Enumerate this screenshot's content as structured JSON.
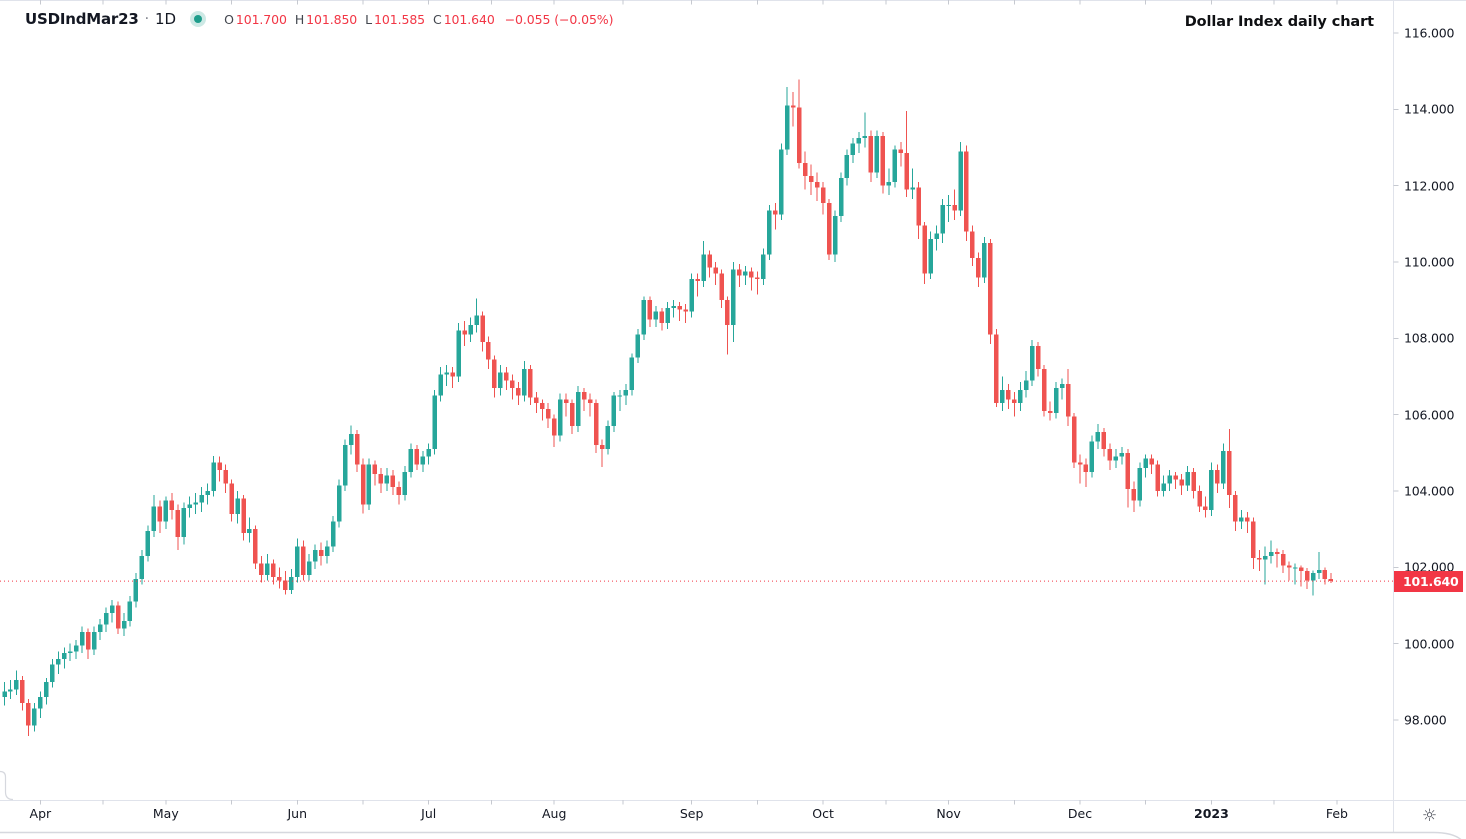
{
  "header": {
    "symbol": "USDIndMar23",
    "separator": "·",
    "interval": "1D",
    "ohlc": {
      "o_label": "O",
      "o": "101.700",
      "h_label": "H",
      "h": "101.850",
      "l_label": "L",
      "l": "101.585",
      "c_label": "C",
      "c": "101.640",
      "change": "−0.055 (−0.05%)"
    },
    "note": "Dollar Index daily chart"
  },
  "icons": {
    "marker": "data-status-dot",
    "settings_glyph": "☼"
  },
  "colors": {
    "up": "#26a69a",
    "down": "#ef5350",
    "accent_red": "#f23645",
    "axis_text": "#131722",
    "border": "#e0e3eb",
    "tick": "#c6c9d0",
    "frame": "#d6d8de"
  },
  "price_axis": {
    "labels": [
      "116.000",
      "114.000",
      "112.000",
      "110.000",
      "108.000",
      "106.000",
      "104.000",
      "102.000",
      "100.000",
      "98.000"
    ],
    "values": [
      116,
      114,
      112,
      110,
      108,
      106,
      104,
      102,
      100,
      98
    ],
    "last_price_label": "101.640",
    "last_price_value": 101.64
  },
  "time_axis": {
    "labels": [
      {
        "text": "Apr",
        "index": 6
      },
      {
        "text": "May",
        "index": 27
      },
      {
        "text": "Jun",
        "index": 49
      },
      {
        "text": "Jul",
        "index": 71
      },
      {
        "text": "Aug",
        "index": 92
      },
      {
        "text": "Sep",
        "index": 115
      },
      {
        "text": "Oct",
        "index": 137
      },
      {
        "text": "Nov",
        "index": 158
      },
      {
        "text": "Dec",
        "index": 180
      },
      {
        "text": "2023",
        "index": 202,
        "bold": true
      },
      {
        "text": "Feb",
        "index": 223
      }
    ]
  },
  "chart_data": {
    "type": "candlestick",
    "title": "Dollar Index daily chart",
    "symbol": "USDIndMar23",
    "interval": "1D",
    "axis_min": 98,
    "axis_max": 116,
    "axis_step": 2,
    "last_close": 101.64,
    "candles": [
      [
        98.6,
        99.0,
        98.38,
        98.75
      ],
      [
        98.75,
        99.05,
        98.55,
        98.8
      ],
      [
        98.8,
        99.3,
        98.65,
        99.05
      ],
      [
        99.05,
        99.15,
        98.25,
        98.45
      ],
      [
        98.45,
        98.55,
        97.58,
        97.85
      ],
      [
        97.85,
        98.45,
        97.7,
        98.3
      ],
      [
        98.3,
        98.75,
        98.05,
        98.6
      ],
      [
        98.6,
        99.1,
        98.4,
        99.0
      ],
      [
        99.0,
        99.6,
        98.85,
        99.45
      ],
      [
        99.45,
        99.8,
        99.2,
        99.6
      ],
      [
        99.6,
        99.9,
        99.35,
        99.75
      ],
      [
        99.75,
        100.0,
        99.55,
        99.8
      ],
      [
        99.8,
        100.1,
        99.6,
        99.95
      ],
      [
        99.95,
        100.45,
        99.75,
        100.3
      ],
      [
        100.3,
        100.4,
        99.6,
        99.85
      ],
      [
        99.85,
        100.45,
        99.7,
        100.3
      ],
      [
        100.3,
        100.65,
        100.1,
        100.5
      ],
      [
        100.5,
        100.95,
        100.3,
        100.8
      ],
      [
        100.8,
        101.15,
        100.55,
        101.0
      ],
      [
        101.0,
        101.1,
        100.25,
        100.4
      ],
      [
        100.4,
        100.8,
        100.2,
        100.6
      ],
      [
        100.6,
        101.25,
        100.45,
        101.1
      ],
      [
        101.1,
        101.85,
        100.95,
        101.7
      ],
      [
        101.7,
        102.45,
        101.55,
        102.3
      ],
      [
        102.3,
        103.1,
        102.15,
        102.95
      ],
      [
        102.95,
        103.9,
        102.8,
        103.6
      ],
      [
        103.6,
        103.75,
        102.9,
        103.2
      ],
      [
        103.2,
        103.85,
        103.0,
        103.75
      ],
      [
        103.75,
        103.95,
        103.25,
        103.5
      ],
      [
        103.5,
        103.65,
        102.45,
        102.8
      ],
      [
        102.8,
        103.7,
        102.6,
        103.55
      ],
      [
        103.55,
        103.85,
        103.3,
        103.65
      ],
      [
        103.65,
        103.95,
        103.4,
        103.7
      ],
      [
        103.7,
        104.1,
        103.45,
        103.9
      ],
      [
        103.9,
        104.2,
        103.65,
        104.0
      ],
      [
        104.0,
        104.92,
        103.85,
        104.75
      ],
      [
        104.75,
        104.9,
        104.25,
        104.55
      ],
      [
        104.55,
        104.7,
        103.95,
        104.2
      ],
      [
        104.2,
        104.3,
        103.2,
        103.4
      ],
      [
        103.4,
        104.0,
        103.15,
        103.8
      ],
      [
        103.8,
        103.9,
        102.7,
        102.9
      ],
      [
        102.9,
        103.3,
        102.65,
        103.0
      ],
      [
        103.0,
        103.1,
        101.95,
        102.1
      ],
      [
        102.1,
        102.3,
        101.6,
        101.8
      ],
      [
        101.8,
        102.35,
        101.65,
        102.1
      ],
      [
        102.1,
        102.2,
        101.55,
        101.75
      ],
      [
        101.75,
        102.0,
        101.45,
        101.65
      ],
      [
        101.65,
        101.9,
        101.29,
        101.4
      ],
      [
        101.4,
        101.95,
        101.3,
        101.75
      ],
      [
        101.75,
        102.75,
        101.6,
        102.55
      ],
      [
        102.55,
        102.7,
        101.65,
        101.8
      ],
      [
        101.8,
        102.35,
        101.65,
        102.15
      ],
      [
        102.15,
        102.6,
        101.95,
        102.45
      ],
      [
        102.45,
        102.65,
        102.05,
        102.3
      ],
      [
        102.3,
        102.7,
        102.1,
        102.55
      ],
      [
        102.55,
        103.35,
        102.4,
        103.2
      ],
      [
        103.2,
        104.3,
        103.05,
        104.15
      ],
      [
        104.15,
        105.35,
        104.0,
        105.2
      ],
      [
        105.2,
        105.72,
        104.95,
        105.5
      ],
      [
        105.5,
        105.6,
        104.5,
        104.7
      ],
      [
        104.7,
        104.85,
        103.41,
        103.65
      ],
      [
        103.65,
        104.85,
        103.5,
        104.7
      ],
      [
        104.7,
        104.8,
        104.15,
        104.45
      ],
      [
        104.45,
        104.6,
        103.95,
        104.2
      ],
      [
        104.2,
        104.6,
        104.0,
        104.4
      ],
      [
        104.4,
        104.55,
        103.9,
        104.1
      ],
      [
        104.1,
        104.25,
        103.65,
        103.9
      ],
      [
        103.9,
        104.65,
        103.75,
        104.5
      ],
      [
        104.5,
        105.25,
        104.35,
        105.1
      ],
      [
        105.1,
        105.2,
        104.55,
        104.7
      ],
      [
        104.7,
        105.05,
        104.5,
        104.9
      ],
      [
        104.9,
        105.25,
        104.7,
        105.1
      ],
      [
        105.1,
        106.65,
        104.95,
        106.5
      ],
      [
        106.5,
        107.25,
        106.35,
        107.05
      ],
      [
        107.05,
        107.3,
        106.75,
        107.1
      ],
      [
        107.1,
        107.25,
        106.7,
        107.0
      ],
      [
        107.0,
        108.4,
        106.85,
        108.2
      ],
      [
        108.2,
        108.45,
        107.8,
        108.1
      ],
      [
        108.1,
        108.55,
        107.9,
        108.35
      ],
      [
        108.35,
        109.05,
        108.15,
        108.6
      ],
      [
        108.6,
        108.7,
        107.65,
        107.9
      ],
      [
        107.9,
        108.05,
        107.2,
        107.45
      ],
      [
        107.45,
        107.55,
        106.45,
        106.7
      ],
      [
        106.7,
        107.3,
        106.5,
        107.1
      ],
      [
        107.1,
        107.25,
        106.65,
        106.9
      ],
      [
        106.9,
        107.05,
        106.4,
        106.7
      ],
      [
        106.7,
        106.85,
        106.25,
        106.5
      ],
      [
        106.5,
        107.4,
        106.35,
        107.2
      ],
      [
        107.2,
        107.3,
        106.25,
        106.45
      ],
      [
        106.45,
        106.6,
        106.05,
        106.3
      ],
      [
        106.3,
        106.4,
        105.85,
        106.15
      ],
      [
        106.15,
        106.3,
        105.65,
        105.9
      ],
      [
        105.9,
        106.0,
        105.15,
        105.45
      ],
      [
        105.45,
        106.55,
        105.3,
        106.4
      ],
      [
        106.4,
        106.55,
        105.95,
        106.3
      ],
      [
        106.3,
        106.4,
        105.5,
        105.7
      ],
      [
        105.7,
        106.75,
        105.55,
        106.6
      ],
      [
        106.6,
        106.7,
        106.1,
        106.4
      ],
      [
        106.4,
        106.55,
        105.95,
        106.3
      ],
      [
        106.3,
        106.4,
        105.0,
        105.2
      ],
      [
        105.2,
        105.35,
        104.63,
        105.1
      ],
      [
        105.1,
        105.85,
        104.95,
        105.7
      ],
      [
        105.7,
        106.6,
        105.55,
        106.5
      ],
      [
        106.5,
        106.65,
        106.1,
        106.5
      ],
      [
        106.5,
        106.8,
        106.25,
        106.65
      ],
      [
        106.65,
        107.6,
        106.5,
        107.5
      ],
      [
        107.5,
        108.25,
        107.35,
        108.1
      ],
      [
        108.1,
        109.1,
        107.95,
        109.0
      ],
      [
        109.0,
        109.1,
        108.3,
        108.5
      ],
      [
        108.5,
        108.85,
        108.3,
        108.7
      ],
      [
        108.7,
        108.8,
        108.2,
        108.4
      ],
      [
        108.4,
        108.95,
        108.25,
        108.8
      ],
      [
        108.8,
        109.0,
        108.55,
        108.85
      ],
      [
        108.85,
        108.95,
        108.45,
        108.75
      ],
      [
        108.75,
        108.9,
        108.4,
        108.7
      ],
      [
        108.7,
        109.7,
        108.55,
        109.55
      ],
      [
        109.55,
        109.7,
        109.1,
        109.5
      ],
      [
        109.5,
        110.55,
        109.35,
        110.2
      ],
      [
        110.2,
        110.3,
        109.6,
        109.85
      ],
      [
        109.85,
        110.0,
        109.4,
        109.7
      ],
      [
        109.7,
        109.8,
        108.8,
        109.0
      ],
      [
        109.0,
        109.1,
        107.58,
        108.35
      ],
      [
        108.35,
        110.0,
        107.9,
        109.8
      ],
      [
        109.8,
        109.95,
        109.35,
        109.65
      ],
      [
        109.65,
        109.9,
        109.4,
        109.75
      ],
      [
        109.75,
        109.85,
        109.25,
        109.6
      ],
      [
        109.6,
        109.75,
        109.15,
        109.55
      ],
      [
        109.55,
        110.35,
        109.4,
        110.2
      ],
      [
        110.2,
        111.5,
        110.05,
        111.35
      ],
      [
        111.35,
        111.55,
        110.85,
        111.25
      ],
      [
        111.25,
        113.1,
        111.1,
        112.95
      ],
      [
        112.95,
        114.58,
        112.8,
        114.1
      ],
      [
        114.1,
        114.45,
        113.55,
        114.05
      ],
      [
        114.05,
        114.78,
        112.45,
        112.6
      ],
      [
        112.6,
        112.9,
        111.9,
        112.25
      ],
      [
        112.25,
        112.55,
        111.75,
        112.1
      ],
      [
        112.1,
        112.35,
        111.6,
        111.95
      ],
      [
        111.95,
        112.1,
        111.25,
        111.55
      ],
      [
        111.55,
        111.65,
        110.05,
        110.2
      ],
      [
        110.2,
        111.35,
        110.0,
        111.2
      ],
      [
        111.2,
        112.35,
        111.05,
        112.2
      ],
      [
        112.2,
        112.95,
        112.0,
        112.8
      ],
      [
        112.8,
        113.25,
        112.6,
        113.1
      ],
      [
        113.1,
        113.4,
        112.85,
        113.25
      ],
      [
        113.25,
        113.92,
        113.0,
        113.3
      ],
      [
        113.3,
        113.45,
        112.1,
        112.35
      ],
      [
        112.35,
        113.45,
        112.2,
        113.3
      ],
      [
        113.3,
        113.4,
        111.8,
        112.0
      ],
      [
        112.0,
        112.45,
        111.75,
        112.1
      ],
      [
        112.1,
        113.05,
        111.95,
        112.95
      ],
      [
        112.95,
        113.15,
        112.5,
        112.85
      ],
      [
        112.85,
        113.95,
        111.7,
        111.9
      ],
      [
        111.9,
        112.45,
        111.65,
        111.95
      ],
      [
        111.95,
        112.1,
        110.6,
        110.95
      ],
      [
        110.95,
        111.05,
        109.42,
        109.7
      ],
      [
        109.7,
        110.8,
        109.55,
        110.6
      ],
      [
        110.6,
        110.95,
        110.3,
        110.75
      ],
      [
        110.75,
        111.65,
        110.5,
        111.5
      ],
      [
        111.5,
        111.75,
        111.05,
        111.5
      ],
      [
        111.5,
        111.9,
        111.1,
        111.35
      ],
      [
        111.35,
        113.15,
        111.2,
        112.9
      ],
      [
        112.9,
        113.05,
        110.55,
        110.8
      ],
      [
        110.8,
        110.95,
        109.9,
        110.1
      ],
      [
        110.1,
        110.25,
        109.35,
        109.6
      ],
      [
        109.6,
        110.65,
        109.45,
        110.5
      ],
      [
        110.5,
        110.6,
        107.85,
        108.1
      ],
      [
        108.1,
        108.25,
        106.2,
        106.3
      ],
      [
        106.3,
        107.0,
        106.1,
        106.65
      ],
      [
        106.65,
        106.8,
        106.15,
        106.4
      ],
      [
        106.4,
        106.6,
        105.95,
        106.3
      ],
      [
        106.3,
        106.85,
        106.1,
        106.65
      ],
      [
        106.65,
        107.15,
        106.45,
        106.9
      ],
      [
        106.9,
        107.95,
        106.75,
        107.8
      ],
      [
        107.8,
        107.9,
        107.0,
        107.2
      ],
      [
        107.2,
        107.3,
        105.95,
        106.1
      ],
      [
        106.1,
        106.35,
        105.85,
        106.05
      ],
      [
        106.05,
        106.85,
        105.9,
        106.7
      ],
      [
        106.7,
        106.95,
        106.4,
        106.8
      ],
      [
        106.8,
        107.2,
        105.7,
        105.95
      ],
      [
        105.95,
        106.05,
        104.6,
        104.75
      ],
      [
        104.75,
        104.95,
        104.2,
        104.7
      ],
      [
        104.7,
        104.85,
        104.1,
        104.5
      ],
      [
        104.5,
        105.45,
        104.35,
        105.3
      ],
      [
        105.3,
        105.75,
        105.1,
        105.55
      ],
      [
        105.55,
        105.65,
        104.9,
        105.1
      ],
      [
        105.1,
        105.25,
        104.55,
        104.8
      ],
      [
        104.8,
        105.1,
        104.6,
        104.9
      ],
      [
        104.9,
        105.15,
        104.7,
        105.0
      ],
      [
        105.0,
        105.1,
        103.57,
        104.05
      ],
      [
        104.05,
        104.25,
        103.45,
        103.75
      ],
      [
        103.75,
        104.75,
        103.6,
        104.6
      ],
      [
        104.6,
        104.95,
        104.35,
        104.85
      ],
      [
        104.85,
        104.95,
        104.45,
        104.7
      ],
      [
        104.7,
        104.8,
        103.85,
        104.0
      ],
      [
        104.0,
        104.4,
        103.85,
        104.2
      ],
      [
        104.2,
        104.55,
        104.0,
        104.4
      ],
      [
        104.4,
        104.5,
        104.05,
        104.3
      ],
      [
        104.3,
        104.45,
        103.9,
        104.15
      ],
      [
        104.15,
        104.65,
        104.0,
        104.5
      ],
      [
        104.5,
        104.6,
        103.8,
        104.0
      ],
      [
        104.0,
        104.15,
        103.45,
        103.6
      ],
      [
        103.6,
        103.85,
        103.3,
        103.5
      ],
      [
        103.5,
        104.75,
        103.35,
        104.55
      ],
      [
        104.55,
        104.7,
        103.95,
        104.2
      ],
      [
        104.2,
        105.25,
        104.05,
        105.05
      ],
      [
        105.05,
        105.63,
        103.55,
        103.9
      ],
      [
        103.9,
        104.0,
        102.95,
        103.2
      ],
      [
        103.2,
        103.5,
        103.0,
        103.3
      ],
      [
        103.3,
        103.45,
        102.9,
        103.2
      ],
      [
        103.2,
        103.3,
        101.95,
        102.25
      ],
      [
        102.25,
        102.45,
        101.9,
        102.2
      ],
      [
        102.2,
        102.55,
        101.55,
        102.3
      ],
      [
        102.3,
        102.7,
        102.1,
        102.4
      ],
      [
        102.4,
        102.5,
        102.0,
        102.35
      ],
      [
        102.35,
        102.45,
        101.85,
        102.05
      ],
      [
        102.05,
        102.15,
        101.65,
        101.99
      ],
      [
        101.99,
        102.1,
        101.55,
        102.0
      ],
      [
        102.0,
        102.05,
        101.5,
        101.9
      ],
      [
        101.9,
        101.98,
        101.43,
        101.65
      ],
      [
        101.65,
        101.92,
        101.26,
        101.85
      ],
      [
        101.85,
        102.4,
        101.7,
        101.93
      ],
      [
        101.93,
        102.0,
        101.55,
        101.7
      ],
      [
        101.7,
        101.85,
        101.585,
        101.64
      ]
    ]
  }
}
